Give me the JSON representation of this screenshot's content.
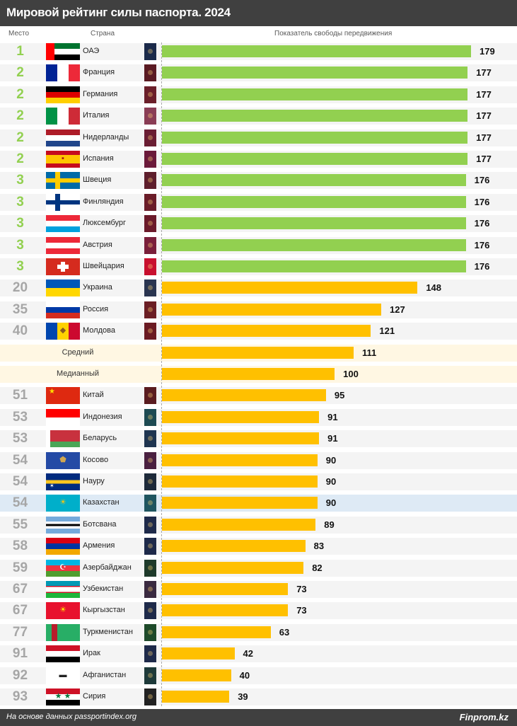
{
  "header": {
    "title": "Мировой рейтинг силы паспорта. 2024"
  },
  "columns": {
    "rank": "Место",
    "country": "Страна",
    "score": "Показатель свободы передвижения"
  },
  "footer": {
    "source": "На основе данных passportindex.org",
    "brand": "Finprom.kz"
  },
  "colors": {
    "top": "#92d050",
    "other": "#ffc000",
    "rank_top": "#92d050",
    "rank_other": "#a6a6a6",
    "highlight_row": "#deeaf5",
    "average_row": "#fff7e3"
  },
  "chart_data": {
    "type": "bar",
    "orientation": "horizontal",
    "title": "Мировой рейтинг силы паспорта. 2024",
    "xlabel": "Показатель свободы передвижения",
    "xlim": [
      0,
      179
    ],
    "rows": [
      {
        "rank": "1",
        "country": "ОАЭ",
        "value": 179,
        "group": "top",
        "flag": {
          "type": "uae"
        },
        "passport": "#1b2a4a"
      },
      {
        "rank": "2",
        "country": "Франция",
        "value": 177,
        "group": "top",
        "flag": {
          "dir": "v",
          "colors": [
            "#002395",
            "#ffffff",
            "#ed2939"
          ]
        },
        "passport": "#5a1a22"
      },
      {
        "rank": "2",
        "country": "Германия",
        "value": 177,
        "group": "top",
        "flag": {
          "dir": "h",
          "colors": [
            "#000000",
            "#dd0000",
            "#ffce00"
          ]
        },
        "passport": "#6b1f2a"
      },
      {
        "rank": "2",
        "country": "Италия",
        "value": 177,
        "group": "top",
        "flag": {
          "dir": "v",
          "colors": [
            "#009246",
            "#ffffff",
            "#ce2b37"
          ]
        },
        "passport": "#8a3d55"
      },
      {
        "rank": "2",
        "country": "Нидерланды",
        "value": 177,
        "group": "top",
        "flag": {
          "dir": "h",
          "colors": [
            "#ae1c28",
            "#ffffff",
            "#21468b"
          ]
        },
        "passport": "#6a1e33"
      },
      {
        "rank": "2",
        "country": "Испания",
        "value": 177,
        "group": "top",
        "flag": {
          "dir": "h",
          "colors": [
            "#c60b1e",
            "#ffc400",
            "#ffc400",
            "#c60b1e"
          ],
          "emblem": "▪",
          "emblemColor": "#ad1519"
        },
        "passport": "#6b1a3a"
      },
      {
        "rank": "3",
        "country": "Швеция",
        "value": 176,
        "group": "top",
        "flag": {
          "type": "nordic",
          "bg": "#006aa7",
          "cross": "#fecc00"
        },
        "passport": "#5e1e2c"
      },
      {
        "rank": "3",
        "country": "Финляндия",
        "value": 176,
        "group": "top",
        "flag": {
          "type": "nordic",
          "bg": "#ffffff",
          "cross": "#003580"
        },
        "passport": "#6a1c28"
      },
      {
        "rank": "3",
        "country": "Люксембург",
        "value": 176,
        "group": "top",
        "flag": {
          "dir": "h",
          "colors": [
            "#ed2939",
            "#ffffff",
            "#00a1de"
          ]
        },
        "passport": "#6b1a2a"
      },
      {
        "rank": "3",
        "country": "Австрия",
        "value": 176,
        "group": "top",
        "flag": {
          "dir": "h",
          "colors": [
            "#ed2939",
            "#ffffff",
            "#ed2939"
          ]
        },
        "passport": "#7a1f3a"
      },
      {
        "rank": "3",
        "country": "Швейцария",
        "value": 176,
        "group": "top",
        "flag": {
          "type": "swiss"
        },
        "passport": "#c8102e"
      },
      {
        "rank": "20",
        "country": "Украина",
        "value": 148,
        "group": "other",
        "flag": {
          "dir": "h",
          "colors": [
            "#0057b7",
            "#ffd700"
          ]
        },
        "passport": "#2a3550"
      },
      {
        "rank": "35",
        "country": "Россия",
        "value": 127,
        "group": "other",
        "flag": {
          "dir": "h",
          "colors": [
            "#ffffff",
            "#0039a6",
            "#d52b1e"
          ]
        },
        "passport": "#6b1e24"
      },
      {
        "rank": "40",
        "country": "Молдова",
        "value": 121,
        "group": "other",
        "flag": {
          "dir": "v",
          "colors": [
            "#0046ae",
            "#ffd200",
            "#cc092f"
          ],
          "emblem": "◆",
          "emblemColor": "#8a5a20"
        },
        "passport": "#6a1a22"
      },
      {
        "label": "Средний",
        "value": 111,
        "group": "average"
      },
      {
        "label": "Медианный",
        "value": 100,
        "group": "average"
      },
      {
        "rank": "51",
        "country": "Китай",
        "value": 95,
        "group": "other",
        "flag": {
          "dir": "h",
          "colors": [
            "#de2910"
          ],
          "emblem": "★",
          "emblemColor": "#ffde00",
          "emblemPos": "tl"
        },
        "passport": "#5a1c20"
      },
      {
        "rank": "53",
        "country": "Индонезия",
        "value": 91,
        "group": "other",
        "flag": {
          "dir": "h",
          "colors": [
            "#ff0000",
            "#ffffff"
          ]
        },
        "passport": "#1d4a52"
      },
      {
        "rank": "53",
        "country": "Беларусь",
        "value": 91,
        "group": "other",
        "flag": {
          "dir": "h",
          "colors": [
            "#c8313e",
            "#c8313e",
            "#4aa657"
          ],
          "side": "#ffffff"
        },
        "passport": "#1f3550"
      },
      {
        "rank": "54",
        "country": "Косово",
        "value": 90,
        "group": "other",
        "flag": {
          "dir": "h",
          "colors": [
            "#244aa5"
          ],
          "emblem": "⬟",
          "emblemColor": "#d0a650"
        },
        "passport": "#4a2040"
      },
      {
        "rank": "54",
        "country": "Науру",
        "value": 90,
        "group": "other",
        "flag": {
          "dir": "h",
          "colors": [
            "#002b7f",
            "#002b7f",
            "#ffc61e",
            "#002b7f",
            "#002b7f"
          ],
          "emblem": "✶",
          "emblemColor": "#ffffff",
          "emblemPos": "bl"
        },
        "passport": "#1e2a3a"
      },
      {
        "rank": "54",
        "country": "Казахстан",
        "value": 90,
        "group": "other",
        "highlight": true,
        "flag": {
          "dir": "h",
          "colors": [
            "#00afca"
          ],
          "emblem": "☀",
          "emblemColor": "#fec50c"
        },
        "passport": "#1f5560"
      },
      {
        "rank": "55",
        "country": "Ботсвана",
        "value": 89,
        "group": "other",
        "flag": {
          "dir": "h",
          "colors": [
            "#75aadb",
            "#75aadb",
            "#ffffff",
            "#000000",
            "#ffffff",
            "#75aadb",
            "#75aadb"
          ]
        },
        "passport": "#1e2a4a"
      },
      {
        "rank": "58",
        "country": "Армения",
        "value": 83,
        "group": "other",
        "flag": {
          "dir": "h",
          "colors": [
            "#d90012",
            "#0033a0",
            "#f2a800"
          ]
        },
        "passport": "#1e2a4a"
      },
      {
        "rank": "59",
        "country": "Азербайджан",
        "value": 82,
        "group": "other",
        "flag": {
          "dir": "h",
          "colors": [
            "#00b5e2",
            "#ef3340",
            "#509e2f"
          ],
          "emblem": "☪",
          "emblemColor": "#ffffff"
        },
        "passport": "#1e3a2a"
      },
      {
        "rank": "67",
        "country": "Узбекистан",
        "value": 73,
        "group": "other",
        "flag": {
          "dir": "h",
          "colors": [
            "#0099b5",
            "#ce1126",
            "#ffffff",
            "#ce1126",
            "#1eb53a"
          ],
          "weights": [
            6,
            1,
            6,
            1,
            6
          ]
        },
        "passport": "#3a2a40"
      },
      {
        "rank": "67",
        "country": "Кыргызстан",
        "value": 73,
        "group": "other",
        "flag": {
          "dir": "h",
          "colors": [
            "#e8112d"
          ],
          "emblem": "☀",
          "emblemColor": "#ffef00"
        },
        "passport": "#1e2a4a"
      },
      {
        "rank": "77",
        "country": "Туркменистан",
        "value": 63,
        "group": "other",
        "flag": {
          "dir": "v",
          "colors": [
            "#28ae66",
            "#b81d2b",
            "#28ae66",
            "#28ae66",
            "#28ae66",
            "#28ae66"
          ]
        },
        "passport": "#1e4a2a"
      },
      {
        "rank": "91",
        "country": "Ирак",
        "value": 42,
        "group": "other",
        "flag": {
          "dir": "h",
          "colors": [
            "#ce1126",
            "#ffffff",
            "#000000"
          ]
        },
        "passport": "#1e2a4a"
      },
      {
        "rank": "92",
        "country": "Афганистан",
        "value": 40,
        "group": "other",
        "flag": {
          "dir": "h",
          "colors": [
            "#ffffff"
          ],
          "emblem": "▬",
          "emblemColor": "#222222"
        },
        "passport": "#1e3a3a"
      },
      {
        "rank": "93",
        "country": "Сирия",
        "value": 39,
        "group": "other",
        "flag": {
          "dir": "h",
          "colors": [
            "#ce1126",
            "#ffffff",
            "#000000"
          ],
          "emblem": "★ ★",
          "emblemColor": "#007a3d"
        },
        "passport": "#222222"
      }
    ]
  }
}
